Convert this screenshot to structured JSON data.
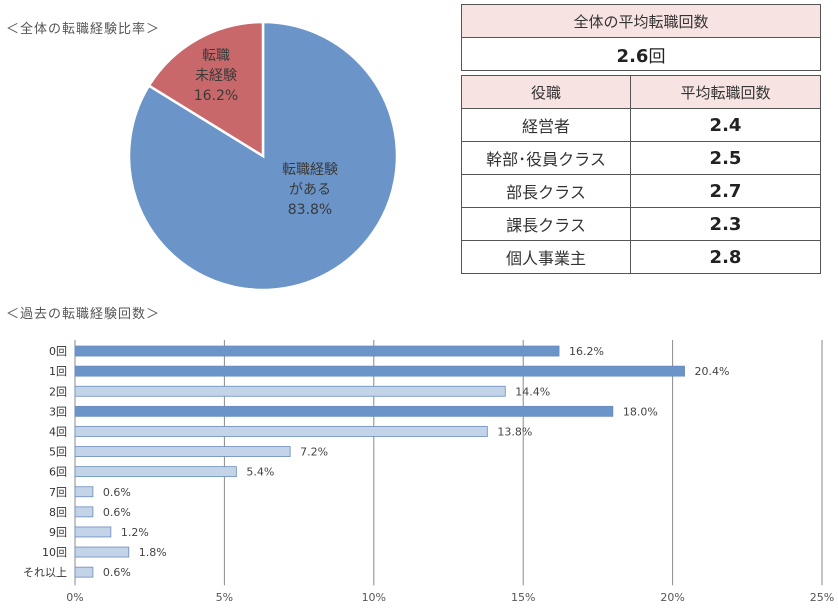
{
  "pie_section": {
    "title": "＜全体の転職経験比率＞"
  },
  "avg_table": {
    "header": "全体の平均転職回数",
    "value_number": "2.6",
    "value_unit": "回"
  },
  "role_table": {
    "headers": [
      "役職",
      "平均転職回数"
    ],
    "rows": [
      {
        "role": "経営者",
        "value": "2.4"
      },
      {
        "role": "幹部･役員クラス",
        "value": "2.5"
      },
      {
        "role": "部長クラス",
        "value": "2.7"
      },
      {
        "role": "課長クラス",
        "value": "2.3"
      },
      {
        "role": "個人事業主",
        "value": "2.8"
      }
    ]
  },
  "bar_section": {
    "title": "＜過去の転職経験回数＞"
  },
  "colors": {
    "pie_experienced": "#6b94c8",
    "pie_not_experienced": "#c9686a",
    "bar_dark": "#6b94c8",
    "bar_light": "#c3d3e8",
    "table_header_bg": "#f8e3e3"
  },
  "chart_data": [
    {
      "type": "pie",
      "slices": [
        {
          "label_lines": [
            "転職経験",
            "がある",
            "83.8%"
          ],
          "value": 83.8,
          "color": "#6b94c8"
        },
        {
          "label_lines": [
            "転職",
            "未経験",
            "16.2%"
          ],
          "value": 16.2,
          "color": "#c9686a"
        }
      ]
    },
    {
      "type": "bar",
      "orientation": "horizontal",
      "categories": [
        "0回",
        "1回",
        "2回",
        "3回",
        "4回",
        "5回",
        "6回",
        "7回",
        "8回",
        "9回",
        "10回",
        "それ以上"
      ],
      "values": [
        16.2,
        20.4,
        14.4,
        18.0,
        13.8,
        7.2,
        5.4,
        0.6,
        0.6,
        1.2,
        1.8,
        0.6
      ],
      "value_labels": [
        "16.2%",
        "20.4%",
        "14.4%",
        "18.0%",
        "13.8%",
        "7.2%",
        "5.4%",
        "0.6%",
        "0.6%",
        "1.2%",
        "1.8%",
        "0.6%"
      ],
      "highlight": [
        true,
        true,
        false,
        true,
        false,
        false,
        false,
        false,
        false,
        false,
        false,
        false
      ],
      "xlim": [
        0,
        25
      ],
      "xticks": [
        "0%",
        "5%",
        "10%",
        "15%",
        "20%",
        "25%"
      ],
      "grid": true
    }
  ]
}
